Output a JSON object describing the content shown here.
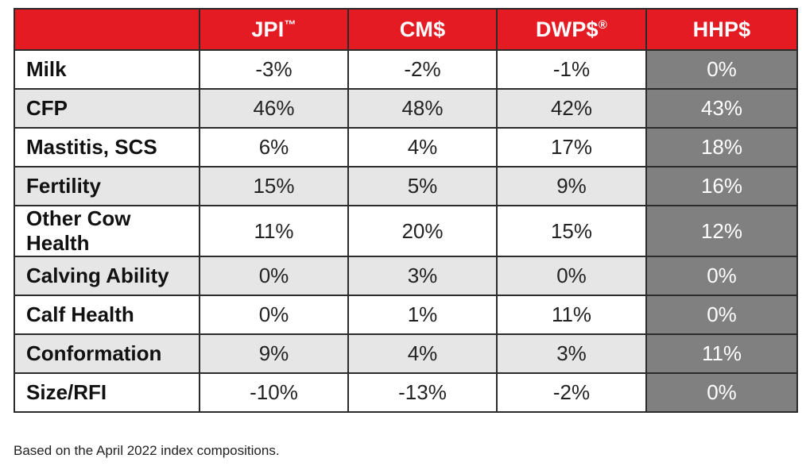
{
  "table": {
    "headers": {
      "corner": "",
      "jpi": "JPI",
      "jpi_mark": "™",
      "cm": "CM$",
      "dwp": "DWP$",
      "dwp_mark": "®",
      "hhp": "HHP$"
    },
    "rows": [
      {
        "label": "Milk",
        "jpi": "-3%",
        "cm": "-2%",
        "dwp": "-1%",
        "hhp": "0%"
      },
      {
        "label": "CFP",
        "jpi": "46%",
        "cm": "48%",
        "dwp": "42%",
        "hhp": "43%"
      },
      {
        "label": "Mastitis, SCS",
        "jpi": "6%",
        "cm": "4%",
        "dwp": "17%",
        "hhp": "18%"
      },
      {
        "label": "Fertility",
        "jpi": "15%",
        "cm": "5%",
        "dwp": "9%",
        "hhp": "16%"
      },
      {
        "label": "Other Cow Health",
        "jpi": "11%",
        "cm": "20%",
        "dwp": "15%",
        "hhp": "12%"
      },
      {
        "label": "Calving Ability",
        "jpi": "0%",
        "cm": "3%",
        "dwp": "0%",
        "hhp": "0%"
      },
      {
        "label": "Calf Health",
        "jpi": "0%",
        "cm": "1%",
        "dwp": "11%",
        "hhp": "0%"
      },
      {
        "label": "Conformation",
        "jpi": "9%",
        "cm": "4%",
        "dwp": "3%",
        "hhp": "11%"
      },
      {
        "label": "Size/RFI",
        "jpi": "-10%",
        "cm": "-13%",
        "dwp": "-2%",
        "hhp": "0%"
      }
    ]
  },
  "footnote": "Based on the April 2022 index compositions.",
  "colors": {
    "header_red": "#e51b24",
    "highlight_column_gray": "#808080",
    "alt_row_gray": "#e6e6e6"
  }
}
